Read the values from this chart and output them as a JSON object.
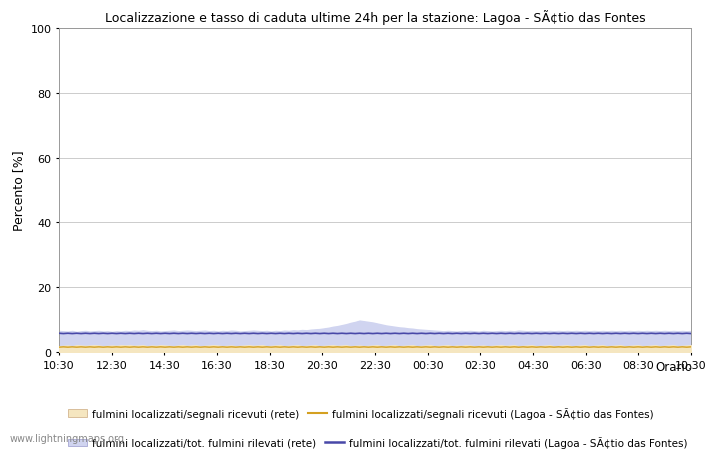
{
  "title": "Localizzazione e tasso di caduta ultime 24h per la stazione: Lagoa - SÃ¢tio das Fontes",
  "ylabel": "Percento [%]",
  "xlabel_orario": "Orario",
  "watermark": "www.lightningmaps.org",
  "ylim": [
    0,
    100
  ],
  "yticks": [
    0,
    20,
    40,
    60,
    80,
    100
  ],
  "xtick_labels": [
    "10:30",
    "12:30",
    "14:30",
    "16:30",
    "18:30",
    "20:30",
    "22:30",
    "00:30",
    "02:30",
    "04:30",
    "06:30",
    "08:30",
    "10:30"
  ],
  "fill_rete_segnali_color": "#f5e6c0",
  "fill_rete_total_color": "#d0d4f0",
  "line_station_segnali_color": "#d4a020",
  "line_station_total_color": "#4848a8",
  "background_color": "#ffffff",
  "grid_color": "#cccccc",
  "legend_labels": [
    "fulmini localizzati/segnali ricevuti (rete)",
    "fulmini localizzati/segnali ricevuti (Lagoa - SÃ¢tio das Fontes)",
    "fulmini localizzati/tot. fulmini rilevati (rete)",
    "fulmini localizzati/tot. fulmini rilevati (Lagoa - SÃ¢tio das Fontes)"
  ],
  "n_points": 144,
  "fill_rete_segnali_values": [
    1.8,
    1.9,
    2.0,
    1.8,
    2.1,
    2.0,
    1.9,
    2.0,
    2.1,
    2.0,
    1.8,
    1.9,
    2.0,
    1.9,
    2.1,
    2.0,
    2.1,
    1.9,
    2.0,
    2.1,
    1.8,
    2.0,
    1.9,
    2.1,
    2.0,
    1.9,
    1.8,
    2.0,
    2.1,
    1.9,
    2.0,
    2.1,
    1.8,
    1.9,
    2.0,
    2.1,
    2.0,
    1.8,
    1.9,
    2.0,
    1.8,
    1.9,
    2.0,
    2.1,
    1.9,
    2.0,
    2.1,
    1.8,
    1.9,
    2.0,
    2.1,
    1.8,
    1.9,
    2.0,
    2.1,
    1.8,
    1.9,
    2.0,
    2.1,
    1.8,
    1.9,
    2.0,
    2.1,
    1.9,
    2.0,
    2.1,
    1.8,
    1.9,
    2.0,
    1.8,
    1.9,
    2.0,
    2.1,
    1.8,
    1.9,
    2.0,
    2.1,
    1.8,
    1.9,
    2.0,
    2.1,
    1.8,
    1.9,
    2.0,
    2.1,
    1.8,
    1.9,
    2.0,
    2.1,
    1.8,
    2.0,
    1.9,
    2.1,
    2.0,
    1.8,
    1.9,
    2.0,
    1.8,
    1.9,
    2.0,
    2.1,
    1.9,
    2.0,
    2.1,
    1.8,
    1.9,
    2.0,
    2.1,
    1.8,
    1.9,
    2.0,
    2.1,
    1.8,
    1.9,
    2.0,
    2.1,
    1.8,
    1.9,
    2.0,
    2.1,
    1.8,
    1.9,
    2.0,
    2.1,
    1.8,
    1.9,
    2.0,
    2.1,
    1.8,
    1.9,
    2.0,
    2.1,
    1.8,
    1.9,
    2.0,
    2.1,
    1.8,
    1.9,
    2.0,
    2.1,
    1.8,
    1.9,
    2.0,
    2.1
  ],
  "fill_rete_total_values": [
    6.5,
    6.4,
    6.3,
    6.5,
    6.2,
    6.4,
    6.5,
    6.3,
    6.4,
    6.5,
    6.3,
    6.4,
    6.2,
    6.4,
    6.3,
    6.5,
    6.4,
    6.6,
    6.5,
    6.7,
    6.5,
    6.4,
    6.5,
    6.3,
    6.4,
    6.5,
    6.6,
    6.4,
    6.5,
    6.6,
    6.5,
    6.4,
    6.5,
    6.6,
    6.4,
    6.5,
    6.3,
    6.5,
    6.4,
    6.6,
    6.5,
    6.3,
    6.4,
    6.5,
    6.6,
    6.5,
    6.4,
    6.5,
    6.3,
    6.5,
    6.4,
    6.6,
    6.5,
    6.7,
    6.6,
    6.8,
    6.7,
    6.9,
    7.0,
    7.1,
    7.3,
    7.5,
    7.8,
    8.0,
    8.3,
    8.6,
    9.0,
    9.3,
    9.7,
    9.5,
    9.3,
    9.1,
    8.8,
    8.5,
    8.2,
    8.0,
    7.8,
    7.6,
    7.5,
    7.3,
    7.2,
    7.0,
    6.9,
    6.8,
    6.7,
    6.6,
    6.5,
    6.4,
    6.5,
    6.4,
    6.3,
    6.5,
    6.4,
    6.5,
    6.4,
    6.3,
    6.5,
    6.4,
    6.3,
    6.4,
    6.5,
    6.4,
    6.5,
    6.4,
    6.6,
    6.5,
    6.4,
    6.5,
    6.4,
    6.5,
    6.4,
    6.5,
    6.4,
    6.5,
    6.4,
    6.5,
    6.4,
    6.5,
    6.4,
    6.5,
    6.4,
    6.5,
    6.4,
    6.5,
    6.4,
    6.5,
    6.4,
    6.5,
    6.4,
    6.5,
    6.4,
    6.5,
    6.4,
    6.5,
    6.4,
    6.5,
    6.4,
    6.5,
    6.4,
    6.5,
    6.4,
    6.5,
    6.4,
    6.5
  ],
  "line_station_segnali_values": [
    1.5,
    1.6,
    1.5,
    1.6,
    1.5,
    1.6,
    1.5,
    1.6,
    1.5,
    1.6,
    1.5,
    1.6,
    1.5,
    1.6,
    1.5,
    1.6,
    1.5,
    1.6,
    1.5,
    1.6,
    1.5,
    1.6,
    1.5,
    1.6,
    1.5,
    1.6,
    1.5,
    1.6,
    1.5,
    1.6,
    1.5,
    1.6,
    1.5,
    1.6,
    1.5,
    1.6,
    1.5,
    1.6,
    1.5,
    1.6,
    1.5,
    1.6,
    1.5,
    1.6,
    1.5,
    1.6,
    1.5,
    1.6,
    1.5,
    1.6,
    1.5,
    1.6,
    1.5,
    1.6,
    1.5,
    1.6,
    1.5,
    1.6,
    1.5,
    1.6,
    1.5,
    1.6,
    1.5,
    1.6,
    1.5,
    1.6,
    1.5,
    1.6,
    1.5,
    1.6,
    1.5,
    1.6,
    1.5,
    1.6,
    1.5,
    1.6,
    1.5,
    1.6,
    1.5,
    1.6,
    1.5,
    1.6,
    1.5,
    1.6,
    1.5,
    1.6,
    1.5,
    1.6,
    1.5,
    1.6,
    1.5,
    1.6,
    1.5,
    1.6,
    1.5,
    1.6,
    1.5,
    1.6,
    1.5,
    1.6,
    1.5,
    1.6,
    1.5,
    1.6,
    1.5,
    1.6,
    1.5,
    1.6,
    1.5,
    1.6,
    1.5,
    1.6,
    1.5,
    1.6,
    1.5,
    1.6,
    1.5,
    1.6,
    1.5,
    1.6,
    1.5,
    1.6,
    1.5,
    1.6,
    1.5,
    1.6,
    1.5,
    1.6,
    1.5,
    1.6,
    1.5,
    1.6,
    1.5,
    1.6,
    1.5,
    1.6,
    1.5,
    1.6,
    1.5,
    1.6,
    1.5,
    1.6,
    1.5,
    1.6
  ],
  "line_station_total_values": [
    5.8,
    5.7,
    5.8,
    5.7,
    5.8,
    5.7,
    5.8,
    5.7,
    5.8,
    5.7,
    5.8,
    5.7,
    5.8,
    5.7,
    5.8,
    5.7,
    5.8,
    5.7,
    5.8,
    5.7,
    5.8,
    5.7,
    5.8,
    5.7,
    5.8,
    5.7,
    5.8,
    5.7,
    5.8,
    5.7,
    5.8,
    5.7,
    5.8,
    5.7,
    5.8,
    5.7,
    5.8,
    5.7,
    5.8,
    5.7,
    5.8,
    5.7,
    5.8,
    5.7,
    5.8,
    5.7,
    5.8,
    5.7,
    5.8,
    5.7,
    5.8,
    5.7,
    5.8,
    5.7,
    5.8,
    5.7,
    5.8,
    5.7,
    5.8,
    5.7,
    5.8,
    5.7,
    5.8,
    5.7,
    5.8,
    5.7,
    5.8,
    5.7,
    5.8,
    5.7,
    5.8,
    5.7,
    5.8,
    5.7,
    5.8,
    5.7,
    5.8,
    5.7,
    5.8,
    5.7,
    5.8,
    5.7,
    5.8,
    5.7,
    5.8,
    5.7,
    5.8,
    5.7,
    5.8,
    5.7,
    5.8,
    5.7,
    5.8,
    5.7,
    5.8,
    5.7,
    5.8,
    5.7,
    5.8,
    5.7,
    5.8,
    5.7,
    5.8,
    5.7,
    5.8,
    5.7,
    5.8,
    5.7,
    5.8,
    5.7,
    5.8,
    5.7,
    5.8,
    5.7,
    5.8,
    5.7,
    5.8,
    5.7,
    5.8,
    5.7,
    5.8,
    5.7,
    5.8,
    5.7,
    5.8,
    5.7,
    5.8,
    5.7,
    5.8,
    5.7,
    5.8,
    5.7,
    5.8,
    5.7,
    5.8,
    5.7,
    5.8,
    5.7,
    5.8,
    5.7,
    5.8,
    5.7,
    5.8,
    5.7
  ]
}
